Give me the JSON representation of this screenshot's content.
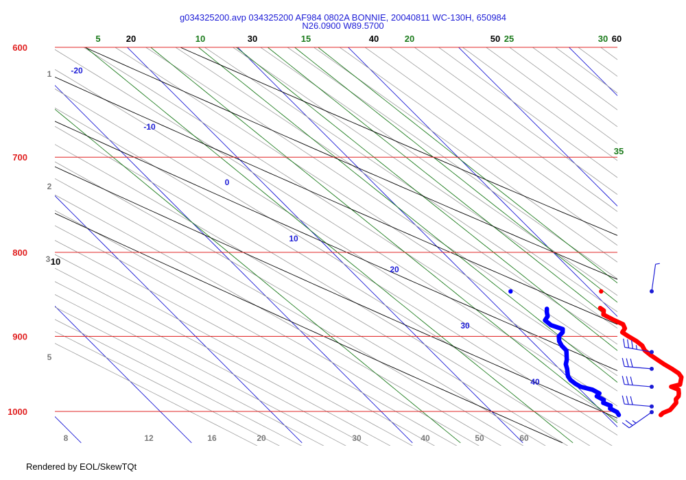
{
  "title_line1": "g034325200.avp 034325200 AF984 0802A BONNIE, 20040811 WC-130H, 650984",
  "title_line2": "N26.0900 W89.5700",
  "footer": "Rendered by EOL/SkewTQt",
  "colors": {
    "isobar": "#e02020",
    "isotherm": "#1b1bd6",
    "dry_adiabat": "#000000",
    "moist_adiabat": "#9a9a9a",
    "mixing_ratio": "#1a7a1a",
    "temperature": "#ff0000",
    "dewpoint": "#0000ff",
    "wind": "#1b1bd6",
    "height_label": "#7a7a7a"
  },
  "chart_data": {
    "type": "skew-t",
    "pressure_range": [
      600,
      1045
    ],
    "pressure_labels": [
      "600",
      "700",
      "800",
      "900",
      "1000"
    ],
    "isotherm_labels": [
      "-20",
      "-10",
      "0",
      "10",
      "20",
      "30",
      "40"
    ],
    "dry_adiabat_labels": [
      "10",
      "20",
      "30",
      "40",
      "50",
      "60"
    ],
    "mixing_ratio_labels": [
      "5",
      "10",
      "15",
      "20",
      "25",
      "30",
      "35"
    ],
    "moist_adiabat_labels": [
      "8",
      "12",
      "16",
      "20",
      "30",
      "40",
      "50",
      "60"
    ],
    "height_labels": [
      "1",
      "2",
      "3",
      "5"
    ],
    "temperature_profile": {
      "pressure": [
        1005,
        1002,
        998,
        993,
        988,
        983,
        979,
        975,
        970,
        966,
        963,
        958,
        953,
        948,
        942,
        936,
        930,
        924,
        918,
        912,
        906,
        900,
        895,
        890,
        885,
        879,
        873,
        868,
        865
      ],
      "temperature": [
        25.0,
        25.4,
        26.3,
        26.9,
        27.5,
        27.8,
        28.3,
        28.6,
        28.9,
        28.5,
        29.5,
        29.9,
        30.3,
        30.4,
        30.2,
        29.9,
        29.7,
        29.5,
        29.4,
        29.6,
        29.5,
        29.2,
        29.0,
        29.6,
        29.8,
        29.3,
        28.9,
        29.3,
        29.2
      ]
    },
    "dewpoint_profile": {
      "pressure": [
        1005,
        1001,
        996,
        992,
        988,
        984,
        979,
        975,
        970,
        966,
        962,
        957,
        952,
        947,
        942,
        936,
        930,
        924,
        918,
        912,
        906,
        900,
        895,
        891,
        886,
        880,
        875,
        870,
        866
      ],
      "dewpoint": [
        21.2,
        21.3,
        21.0,
        21.3,
        20.9,
        21.2,
        20.9,
        21.4,
        21.1,
        20.3,
        20.1,
        20.0,
        20.1,
        20.4,
        20.7,
        21.0,
        21.5,
        21.9,
        22.3,
        22.3,
        22.5,
        22.9,
        23.6,
        23.9,
        23.2,
        23.1,
        23.7,
        24.0,
        24.3
      ]
    },
    "isolated_points": [
      {
        "series": "temperature",
        "pressure": 845,
        "temperature": 30.8
      },
      {
        "series": "dewpoint",
        "pressure": 845,
        "dewpoint": 22.6
      }
    ],
    "wind_barbs": [
      {
        "pressure": 845,
        "direction_deg": 8,
        "speed_kt": 5
      },
      {
        "pressure": 920,
        "direction_deg": 280,
        "speed_kt": 35
      },
      {
        "pressure": 942,
        "direction_deg": 275,
        "speed_kt": 30
      },
      {
        "pressure": 966,
        "direction_deg": 275,
        "speed_kt": 30
      },
      {
        "pressure": 993,
        "direction_deg": 275,
        "speed_kt": 30
      },
      {
        "pressure": 1001,
        "direction_deg": 235,
        "speed_kt": 25
      }
    ]
  }
}
